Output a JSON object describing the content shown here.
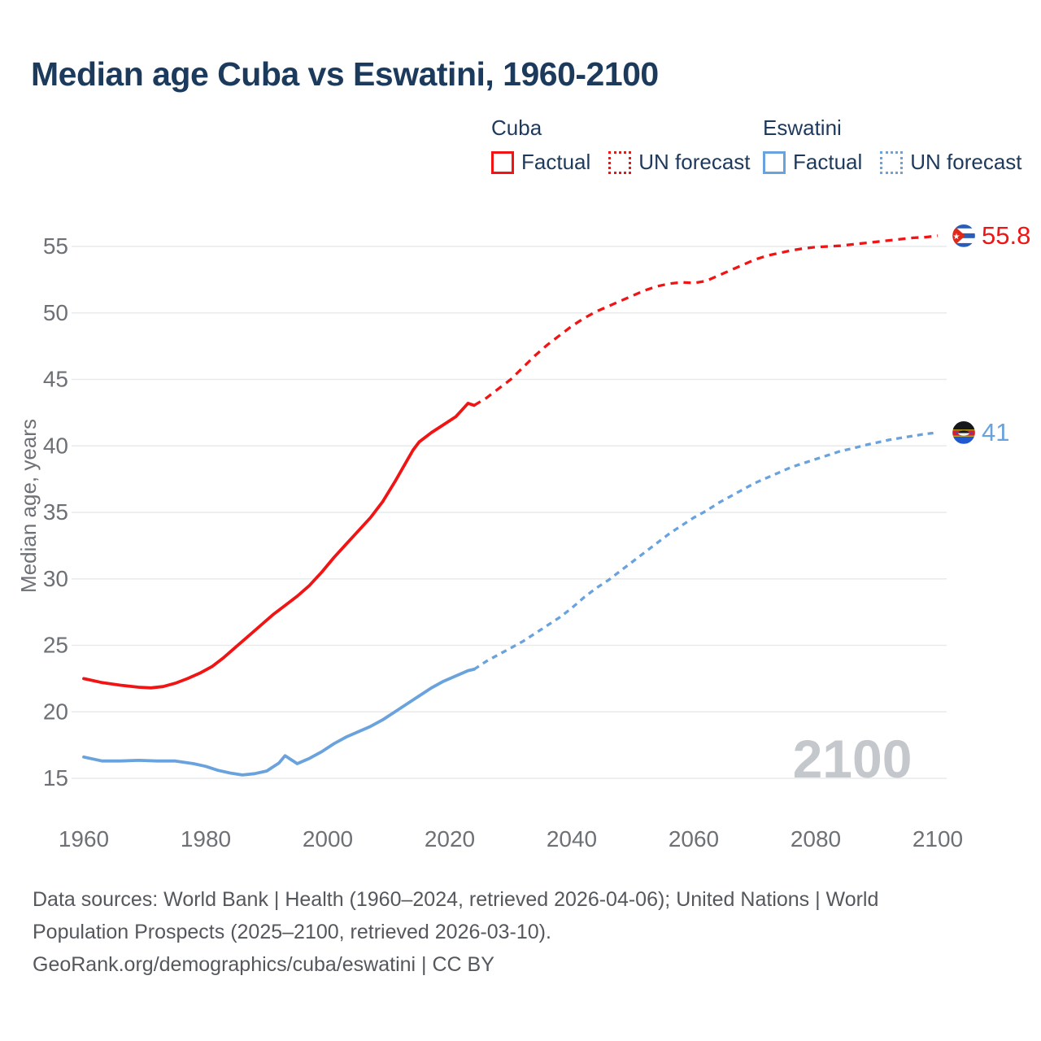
{
  "title": "Median age Cuba vs Eswatini, 1960-2100",
  "legend": {
    "groups": [
      {
        "name": "Cuba",
        "color": "#f11414",
        "items": [
          {
            "label": "Factual",
            "style": "solid"
          },
          {
            "label": "UN forecast",
            "style": "dotted"
          }
        ]
      },
      {
        "name": "Eswatini",
        "color": "#69a2dc",
        "items": [
          {
            "label": "Factual",
            "style": "solid"
          },
          {
            "label": "UN forecast",
            "style": "dotted"
          }
        ]
      }
    ]
  },
  "watermark": "2100",
  "footer": {
    "lines": [
      "Data sources: World Bank | Health (1960–2024, retrieved 2026-04-06); United Nations | World",
      "Population Prospects (2025–2100, retrieved 2026-03-10).",
      "GeoRank.org/demographics/cuba/eswatini | CC BY"
    ]
  },
  "chart_data": {
    "type": "line",
    "title": "Median age Cuba vs Eswatini, 1960-2100",
    "xlabel": "",
    "ylabel": "Median age, years",
    "xlim": [
      1958,
      2112
    ],
    "ylim": [
      13.5,
      58
    ],
    "xticks": [
      1960,
      1980,
      2000,
      2020,
      2040,
      2060,
      2080,
      2100
    ],
    "yticks": [
      15,
      20,
      25,
      30,
      35,
      40,
      45,
      50,
      55
    ],
    "grid": "horizontal-only",
    "legend_position": "top-right",
    "colors": {
      "cuba": "#f11414",
      "eswatini": "#69a2dc",
      "grid": "#e9eaec",
      "axis_text": "#6d7175",
      "watermark": "#c4c7cb"
    },
    "series": [
      {
        "name": "Cuba Factual",
        "color": "#f11414",
        "style": "solid",
        "x": [
          1960,
          1963,
          1966,
          1969,
          1971,
          1973,
          1975,
          1977,
          1979,
          1981,
          1983,
          1985,
          1987,
          1989,
          1991,
          1993,
          1995,
          1997,
          1999,
          2001,
          2003,
          2005,
          2007,
          2009,
          2011,
          2013,
          2014,
          2015,
          2017,
          2019,
          2021,
          2022,
          2023,
          2024
        ],
        "values": [
          22.5,
          22.2,
          22.0,
          21.85,
          21.8,
          21.9,
          22.15,
          22.5,
          22.9,
          23.4,
          24.1,
          24.9,
          25.7,
          26.5,
          27.3,
          28.0,
          28.7,
          29.5,
          30.5,
          31.6,
          32.6,
          33.6,
          34.6,
          35.8,
          37.3,
          38.9,
          39.7,
          40.3,
          41.0,
          41.6,
          42.2,
          42.7,
          43.2,
          43.05
        ]
      },
      {
        "name": "Cuba UN forecast",
        "color": "#f11414",
        "style": "dashed",
        "x": [
          2024,
          2026,
          2028,
          2030,
          2032,
          2034,
          2036,
          2038,
          2040,
          2042,
          2044,
          2046,
          2048,
          2050,
          2052,
          2054,
          2056,
          2058,
          2060,
          2062,
          2064,
          2066,
          2068,
          2070,
          2072,
          2074,
          2076,
          2078,
          2080,
          2082,
          2084,
          2086,
          2088,
          2090,
          2092,
          2094,
          2096,
          2098,
          2100
        ],
        "values": [
          43.05,
          43.6,
          44.3,
          45.0,
          45.9,
          46.8,
          47.6,
          48.3,
          49.0,
          49.6,
          50.1,
          50.5,
          50.9,
          51.3,
          51.7,
          52.0,
          52.2,
          52.3,
          52.25,
          52.4,
          52.8,
          53.2,
          53.6,
          54.0,
          54.3,
          54.5,
          54.7,
          54.85,
          54.95,
          55.0,
          55.05,
          55.15,
          55.25,
          55.35,
          55.45,
          55.55,
          55.65,
          55.7,
          55.8
        ]
      },
      {
        "name": "Eswatini Factual",
        "color": "#69a2dc",
        "style": "solid",
        "x": [
          1960,
          1963,
          1966,
          1969,
          1972,
          1975,
          1978,
          1980,
          1982,
          1984,
          1986,
          1988,
          1990,
          1992,
          1993,
          1994,
          1995,
          1997,
          1999,
          2001,
          2003,
          2005,
          2007,
          2009,
          2011,
          2013,
          2015,
          2017,
          2019,
          2021,
          2023,
          2024
        ],
        "values": [
          16.6,
          16.3,
          16.3,
          16.35,
          16.3,
          16.3,
          16.1,
          15.9,
          15.6,
          15.4,
          15.25,
          15.35,
          15.55,
          16.15,
          16.7,
          16.4,
          16.1,
          16.5,
          17.0,
          17.6,
          18.1,
          18.5,
          18.9,
          19.4,
          20.0,
          20.6,
          21.2,
          21.8,
          22.3,
          22.7,
          23.1,
          23.2
        ]
      },
      {
        "name": "Eswatini UN forecast",
        "color": "#69a2dc",
        "style": "dashed",
        "x": [
          2024,
          2026,
          2028,
          2030,
          2032,
          2034,
          2036,
          2038,
          2040,
          2042,
          2044,
          2046,
          2048,
          2050,
          2052,
          2054,
          2056,
          2058,
          2060,
          2062,
          2064,
          2066,
          2068,
          2070,
          2072,
          2074,
          2076,
          2078,
          2080,
          2082,
          2084,
          2086,
          2088,
          2090,
          2092,
          2094,
          2096,
          2098,
          2100
        ],
        "values": [
          23.2,
          23.8,
          24.3,
          24.8,
          25.3,
          25.9,
          26.5,
          27.1,
          27.8,
          28.6,
          29.3,
          29.9,
          30.6,
          31.3,
          32.0,
          32.7,
          33.4,
          34.0,
          34.6,
          35.1,
          35.7,
          36.2,
          36.7,
          37.2,
          37.6,
          38.0,
          38.4,
          38.7,
          39.0,
          39.3,
          39.6,
          39.8,
          40.05,
          40.25,
          40.45,
          40.6,
          40.75,
          40.9,
          41.0
        ]
      }
    ],
    "end_labels": [
      {
        "series": "Cuba",
        "flag": "cuba",
        "value": 55.8,
        "display": "55.8",
        "color": "#f11414"
      },
      {
        "series": "Eswatini",
        "flag": "eswatini",
        "value": 41,
        "display": "41",
        "color": "#69a2dc"
      }
    ]
  }
}
